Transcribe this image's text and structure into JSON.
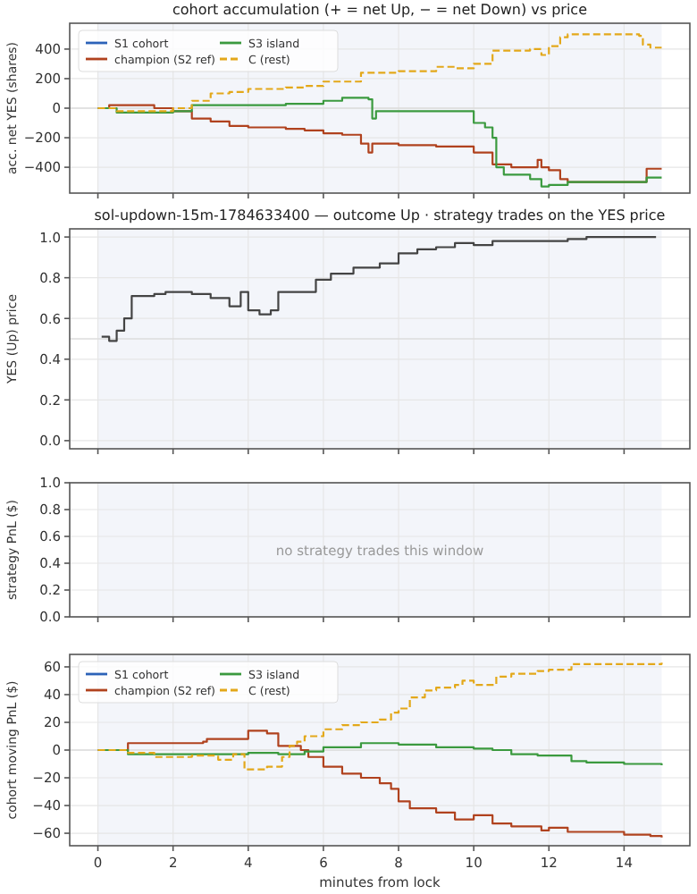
{
  "chart_data": [
    {
      "type": "step",
      "title": "cohort accumulation (+ = net Up, − = net Down) vs price",
      "ylabel": "acc. net YES (shares)",
      "xlim": [
        -0.75,
        15.75
      ],
      "xticks": [
        {
          "value": 0,
          "label": null
        },
        {
          "value": 2,
          "label": null
        },
        {
          "value": 4,
          "label": null
        },
        {
          "value": 6,
          "label": null
        },
        {
          "value": 8,
          "label": null
        },
        {
          "value": 10,
          "label": null
        },
        {
          "value": 12,
          "label": null
        },
        {
          "value": 14,
          "label": null
        }
      ],
      "ylim": [
        -575,
        575
      ],
      "yticks": [
        {
          "value": -400,
          "label": "−400"
        },
        {
          "value": -200,
          "label": "−200"
        },
        0,
        200,
        400
      ],
      "tick_labels": "y",
      "grid": true,
      "legend": "top left",
      "bands": [
        {
          "axis": "x",
          "from": 0,
          "to": 15,
          "color": "#f3f5fa"
        }
      ],
      "ref_lines": [
        {
          "axis": "y",
          "value": 0,
          "color": "#dddddd"
        }
      ],
      "series": [
        {
          "name": "S1 cohort",
          "color": "#2c62b8",
          "line_style": "solid",
          "values": [
            null
          ]
        },
        {
          "name": "champion (S2 ref)",
          "color": "#b0421e",
          "line_style": "solid",
          "x": [
            0,
            0.3,
            1.5,
            2,
            2.5,
            3,
            3.5,
            4,
            5,
            5.5,
            6,
            6.5,
            7,
            7.2,
            7.3,
            8,
            9,
            10,
            10.5,
            11,
            11.7,
            11.8,
            12,
            12.3,
            12.5,
            14.6,
            15
          ],
          "values": [
            0,
            20,
            0,
            -20,
            -70,
            -90,
            -120,
            -130,
            -140,
            -150,
            -170,
            -180,
            -240,
            -300,
            -240,
            -250,
            -260,
            -300,
            -380,
            -400,
            -350,
            -400,
            -420,
            -480,
            -500,
            -410,
            -410
          ]
        },
        {
          "name": "S3 island",
          "color": "#3b9a3f",
          "line_style": "solid",
          "x": [
            0,
            0.5,
            2,
            2.5,
            5,
            6,
            6.5,
            7.2,
            7.3,
            7.4,
            7.5,
            9.5,
            10,
            10.3,
            10.5,
            10.6,
            10.8,
            11.5,
            11.8,
            12,
            12.5,
            14.6,
            15
          ],
          "values": [
            0,
            -30,
            -20,
            20,
            30,
            50,
            70,
            60,
            -70,
            -20,
            -20,
            -20,
            -100,
            -130,
            -200,
            -400,
            -450,
            -480,
            -530,
            -520,
            -500,
            -470,
            -470
          ]
        },
        {
          "name": "C (rest)",
          "color": "#e3a81a",
          "line_style": "dashed",
          "x": [
            0,
            0.5,
            2,
            2.5,
            3,
            3.5,
            4,
            5,
            5.5,
            6,
            7,
            8,
            9,
            9.5,
            10,
            10.5,
            11.5,
            11.8,
            12,
            12.3,
            12.5,
            14.4,
            14.5,
            14.7,
            15
          ],
          "values": [
            0,
            -20,
            0,
            50,
            100,
            110,
            130,
            140,
            150,
            180,
            240,
            250,
            280,
            270,
            300,
            390,
            400,
            360,
            420,
            480,
            500,
            490,
            430,
            410,
            410
          ]
        }
      ]
    },
    {
      "type": "step",
      "title": "sol-updown-15m-1784633400 — outcome Up · strategy trades on the YES price",
      "ylabel": "YES (Up) price",
      "xlim": [
        -0.75,
        15.75
      ],
      "xticks": [
        {
          "value": 0,
          "label": null
        },
        {
          "value": 2,
          "label": null
        },
        {
          "value": 4,
          "label": null
        },
        {
          "value": 6,
          "label": null
        },
        {
          "value": 8,
          "label": null
        },
        {
          "value": 10,
          "label": null
        },
        {
          "value": 12,
          "label": null
        },
        {
          "value": 14,
          "label": null
        }
      ],
      "ylim": [
        -0.04,
        1.04
      ],
      "yticks": [
        {
          "value": 0,
          "label": "0.0"
        },
        {
          "value": 0.2,
          "label": "0.2"
        },
        {
          "value": 0.4,
          "label": "0.4"
        },
        {
          "value": 0.6,
          "label": "0.6"
        },
        {
          "value": 0.8,
          "label": "0.8"
        },
        {
          "value": 1,
          "label": "1.0"
        }
      ],
      "tick_labels": "y",
      "grid": true,
      "bands": [
        {
          "axis": "x",
          "from": 0,
          "to": 15,
          "color": "#f3f5fa"
        }
      ],
      "ref_lines": [
        {
          "axis": "y",
          "value": 0.5,
          "color": "#dddddd"
        }
      ],
      "series": [
        {
          "color": "#444444",
          "line_style": "solid",
          "x": [
            0.1,
            0.3,
            0.5,
            0.7,
            0.9,
            1.5,
            1.8,
            2.5,
            3,
            3.5,
            3.8,
            4,
            4.3,
            4.6,
            4.8,
            5.5,
            5.8,
            6.2,
            6.8,
            7.5,
            8,
            8.5,
            9,
            9.5,
            10,
            10.5,
            11.5,
            12.5,
            13,
            14.85
          ],
          "values": [
            0.51,
            0.49,
            0.54,
            0.6,
            0.71,
            0.72,
            0.73,
            0.72,
            0.7,
            0.66,
            0.73,
            0.64,
            0.62,
            0.64,
            0.73,
            0.73,
            0.79,
            0.82,
            0.85,
            0.87,
            0.92,
            0.94,
            0.95,
            0.97,
            0.96,
            0.98,
            0.98,
            0.99,
            1.0,
            1.0
          ]
        }
      ]
    },
    {
      "type": "line",
      "ylabel": "strategy PnL ($)",
      "xlim": [
        -0.75,
        15.75
      ],
      "xticks": [
        {
          "value": 0,
          "label": null
        },
        {
          "value": 2,
          "label": null
        },
        {
          "value": 4,
          "label": null
        },
        {
          "value": 6,
          "label": null
        },
        {
          "value": 8,
          "label": null
        },
        {
          "value": 10,
          "label": null
        },
        {
          "value": 12,
          "label": null
        },
        {
          "value": 14,
          "label": null
        }
      ],
      "ylim": [
        0,
        1
      ],
      "yticks": [
        {
          "value": 0,
          "label": "0.0"
        },
        {
          "value": 0.2,
          "label": "0.2"
        },
        {
          "value": 0.4,
          "label": "0.4"
        },
        {
          "value": 0.6,
          "label": "0.6"
        },
        {
          "value": 0.8,
          "label": "0.8"
        },
        {
          "value": 1,
          "label": "1.0"
        }
      ],
      "tick_labels": "y",
      "grid": true,
      "bands": [
        {
          "axis": "x",
          "from": 0,
          "to": 15,
          "color": "#f3f5fa"
        }
      ],
      "annotations": [
        "no strategy trades this window"
      ]
    },
    {
      "type": "step",
      "xlabel": "minutes from lock",
      "ylabel": "cohort moving PnL ($)",
      "xlim": [
        -0.75,
        15.75
      ],
      "xticks": [
        0,
        2,
        4,
        6,
        8,
        10,
        12,
        14
      ],
      "ylim": [
        -69,
        69
      ],
      "yticks": [
        {
          "value": -60,
          "label": "−60"
        },
        {
          "value": -40,
          "label": "−40"
        },
        {
          "value": -20,
          "label": "−20"
        },
        0,
        20,
        40,
        60
      ],
      "grid": true,
      "legend": "top left",
      "bands": [
        {
          "axis": "x",
          "from": 0,
          "to": 15,
          "color": "#f3f5fa"
        }
      ],
      "ref_lines": [
        {
          "axis": "y",
          "value": 0,
          "color": "#dddddd"
        }
      ],
      "series": [
        {
          "name": "S1 cohort",
          "color": "#2c62b8",
          "line_style": "solid",
          "values": [
            null
          ]
        },
        {
          "name": "champion (S2 ref)",
          "color": "#b0421e",
          "line_style": "solid",
          "x": [
            0,
            0.8,
            2.8,
            2.9,
            3.8,
            4,
            4.5,
            4.8,
            5.4,
            5.6,
            6,
            6.5,
            7,
            7.5,
            7.8,
            8,
            8.3,
            9,
            9.5,
            10,
            10.5,
            11,
            11.8,
            12,
            12.5,
            14,
            14.7,
            15
          ],
          "values": [
            0,
            5,
            6,
            8,
            8,
            14,
            12,
            3,
            0,
            -5,
            -12,
            -17,
            -20,
            -24,
            -28,
            -37,
            -42,
            -45,
            -50,
            -47,
            -53,
            -55,
            -58,
            -56,
            -59,
            -61,
            -62,
            -63
          ]
        },
        {
          "name": "S3 island",
          "color": "#3b9a3f",
          "line_style": "solid",
          "x": [
            0,
            0.8,
            2,
            4,
            4.8,
            5.5,
            6,
            7,
            8,
            9,
            10,
            10.5,
            11,
            11.7,
            12.6,
            13,
            14,
            15
          ],
          "values": [
            0,
            -3,
            -3,
            -2,
            -3,
            -1,
            2,
            5,
            4,
            2,
            1,
            0,
            -3,
            -4,
            -8,
            -9,
            -10,
            -11
          ]
        },
        {
          "name": "C (rest)",
          "color": "#e3a81a",
          "line_style": "dashed",
          "x": [
            0,
            0.8,
            1.5,
            2.5,
            3.2,
            3.6,
            3.9,
            4.5,
            4.9,
            5.1,
            5.3,
            5.5,
            6,
            6.5,
            7,
            7.5,
            7.8,
            8,
            8.3,
            8.7,
            9,
            9.5,
            9.7,
            10,
            10.5,
            10.6,
            11,
            11.7,
            12,
            12.6,
            15
          ],
          "values": [
            0,
            -2,
            -5,
            -4,
            -7,
            -3,
            -14,
            -12,
            -5,
            3,
            6,
            10,
            15,
            18,
            20,
            22,
            27,
            30,
            38,
            43,
            45,
            47,
            50,
            47,
            47,
            53,
            55,
            57,
            58,
            62,
            63
          ]
        }
      ]
    }
  ]
}
